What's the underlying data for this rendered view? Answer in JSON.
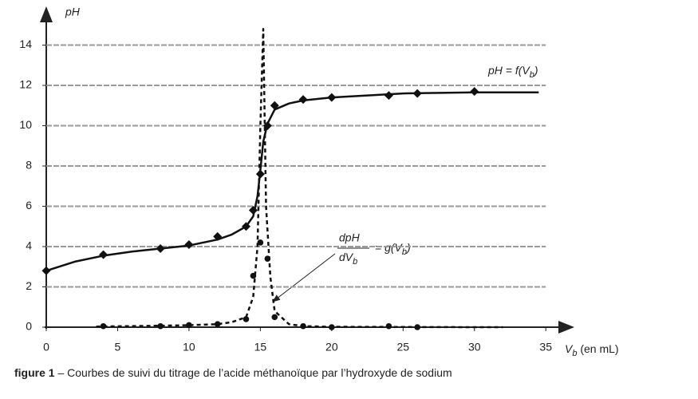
{
  "chart_data": {
    "type": "scatter",
    "y_label": "pH",
    "x_label": [
      "V",
      "b",
      " (en mL)"
    ],
    "xlim": [
      0,
      37
    ],
    "ylim": [
      0,
      16
    ],
    "xticks": [
      0,
      5,
      10,
      15,
      20,
      25,
      30,
      35
    ],
    "yticks": [
      0,
      2,
      4,
      6,
      8,
      10,
      12,
      14
    ],
    "grid": true,
    "series": [
      {
        "marker": "diamond",
        "color": "#111111",
        "x": [
          0,
          4,
          8,
          10,
          12,
          14,
          14.5,
          15,
          15.5,
          16,
          18,
          20,
          24,
          26,
          30
        ],
        "values": [
          2.8,
          3.6,
          3.9,
          4.1,
          4.5,
          5.0,
          5.8,
          7.6,
          10.0,
          11.0,
          11.3,
          11.4,
          11.5,
          11.6,
          11.7
        ]
      },
      {
        "line": "solid",
        "color": "#111111",
        "x": [
          0,
          2,
          4,
          6,
          8,
          10,
          12,
          13,
          14,
          14.5,
          14.8,
          15,
          15.2,
          15.5,
          16,
          17,
          18,
          20,
          25,
          30,
          34.5
        ],
        "values": [
          2.8,
          3.25,
          3.55,
          3.75,
          3.9,
          4.05,
          4.35,
          4.6,
          5.0,
          5.5,
          6.5,
          7.8,
          9.2,
          10.1,
          10.8,
          11.1,
          11.25,
          11.4,
          11.6,
          11.65,
          11.65
        ]
      },
      {
        "marker": "circle",
        "color": "#111111",
        "x": [
          4,
          8,
          10,
          12,
          14,
          14.5,
          15,
          15.5,
          16,
          18,
          20,
          24,
          26
        ],
        "values": [
          0.05,
          0.05,
          0.1,
          0.15,
          0.4,
          2.55,
          4.2,
          3.4,
          0.5,
          0.05,
          0.0,
          0.05,
          0.0
        ]
      },
      {
        "line": "dashed",
        "color": "#111111",
        "x": [
          3.5,
          8,
          10,
          12,
          13,
          14,
          14.5,
          14.8,
          15,
          15.2,
          15.4,
          15.7,
          16,
          17,
          18,
          20,
          30,
          32
        ],
        "values": [
          0.03,
          0.07,
          0.1,
          0.15,
          0.25,
          0.5,
          1.5,
          4.0,
          10.0,
          14.8,
          6.0,
          2.5,
          0.8,
          0.15,
          0.05,
          0.02,
          0.0,
          0.0
        ]
      }
    ],
    "annotations": {
      "f": [
        "pH = f(V",
        "b",
        ")"
      ],
      "g_num": "dpH",
      "g_den": [
        "dV",
        "b"
      ],
      "g_eq": [
        "= g(V",
        "b",
        ")"
      ]
    },
    "caption": {
      "label": "figure 1",
      "text": " – Courbes de suivi du titrage de l’acide méthanoïque par l’hydroxyde de sodium"
    }
  }
}
